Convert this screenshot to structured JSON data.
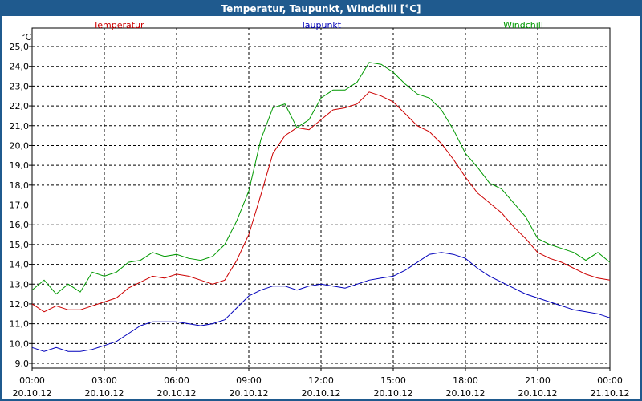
{
  "window": {
    "title": "Temperatur, Taupunkt, Windchill [°C]"
  },
  "chart_data": {
    "type": "line",
    "title": "Temperatur, Taupunkt, Windchill [°C]",
    "ylabel": "°C",
    "ylim": [
      9.0,
      25.5
    ],
    "y_ticks": [
      "9,0",
      "10,0",
      "11,0",
      "12,0",
      "13,0",
      "14,0",
      "15,0",
      "16,0",
      "17,0",
      "18,0",
      "19,0",
      "20,0",
      "21,0",
      "22,0",
      "23,0",
      "24,0",
      "25,0"
    ],
    "x_ticks": [
      {
        "time": "00:00",
        "date": "20.10.12"
      },
      {
        "time": "03:00",
        "date": "20.10.12"
      },
      {
        "time": "06:00",
        "date": "20.10.12"
      },
      {
        "time": "09:00",
        "date": "20.10.12"
      },
      {
        "time": "12:00",
        "date": "20.10.12"
      },
      {
        "time": "15:00",
        "date": "20.10.12"
      },
      {
        "time": "18:00",
        "date": "20.10.12"
      },
      {
        "time": "21:00",
        "date": "20.10.12"
      },
      {
        "time": "00:00",
        "date": "21.10.12"
      }
    ],
    "grid": true,
    "x_hours": [
      0,
      0.5,
      1,
      1.5,
      2,
      2.5,
      3,
      3.5,
      4,
      4.5,
      5,
      5.5,
      6,
      6.5,
      7,
      7.5,
      8,
      8.5,
      9,
      9.5,
      10,
      10.5,
      11,
      11.5,
      12,
      12.5,
      13,
      13.5,
      14,
      14.5,
      15,
      15.5,
      16,
      16.5,
      17,
      17.5,
      18,
      18.5,
      19,
      19.5,
      20,
      20.5,
      21,
      21.5,
      22,
      22.5,
      23,
      23.5,
      24
    ],
    "series": [
      {
        "name": "Temperatur",
        "color": "#cc0000",
        "values": [
          12.0,
          11.6,
          11.9,
          11.7,
          11.7,
          11.9,
          12.1,
          12.3,
          12.8,
          13.1,
          13.4,
          13.3,
          13.5,
          13.4,
          13.2,
          13.0,
          13.2,
          14.2,
          15.5,
          17.5,
          19.6,
          20.5,
          20.9,
          20.8,
          21.3,
          21.8,
          21.9,
          22.1,
          22.7,
          22.5,
          22.2,
          21.6,
          21.0,
          20.7,
          20.1,
          19.3,
          18.4,
          17.6,
          17.1,
          16.6,
          15.9,
          15.3,
          14.6,
          14.3,
          14.1,
          13.8,
          13.5,
          13.3,
          13.2
        ]
      },
      {
        "name": "Taupunkt",
        "color": "#0000bb",
        "values": [
          9.8,
          9.6,
          9.8,
          9.6,
          9.6,
          9.7,
          9.9,
          10.1,
          10.5,
          10.9,
          11.1,
          11.1,
          11.1,
          11.0,
          10.9,
          11.0,
          11.2,
          11.8,
          12.4,
          12.7,
          12.9,
          12.9,
          12.7,
          12.9,
          13.0,
          12.9,
          12.8,
          13.0,
          13.2,
          13.3,
          13.4,
          13.7,
          14.1,
          14.5,
          14.6,
          14.5,
          14.3,
          13.8,
          13.4,
          13.1,
          12.8,
          12.5,
          12.3,
          12.1,
          11.9,
          11.7,
          11.6,
          11.5,
          11.3
        ]
      },
      {
        "name": "Windchill",
        "color": "#009900",
        "values": [
          12.7,
          13.2,
          12.5,
          13.0,
          12.6,
          13.6,
          13.4,
          13.6,
          14.1,
          14.2,
          14.6,
          14.4,
          14.5,
          14.3,
          14.2,
          14.4,
          15.0,
          16.2,
          17.7,
          20.3,
          21.9,
          22.1,
          20.9,
          21.3,
          22.4,
          22.8,
          22.8,
          23.2,
          24.2,
          24.1,
          23.7,
          23.1,
          22.6,
          22.4,
          21.8,
          20.8,
          19.6,
          18.9,
          18.1,
          17.8,
          17.1,
          16.4,
          15.3,
          15.0,
          14.8,
          14.6,
          14.2,
          14.6,
          14.1
        ]
      }
    ]
  }
}
